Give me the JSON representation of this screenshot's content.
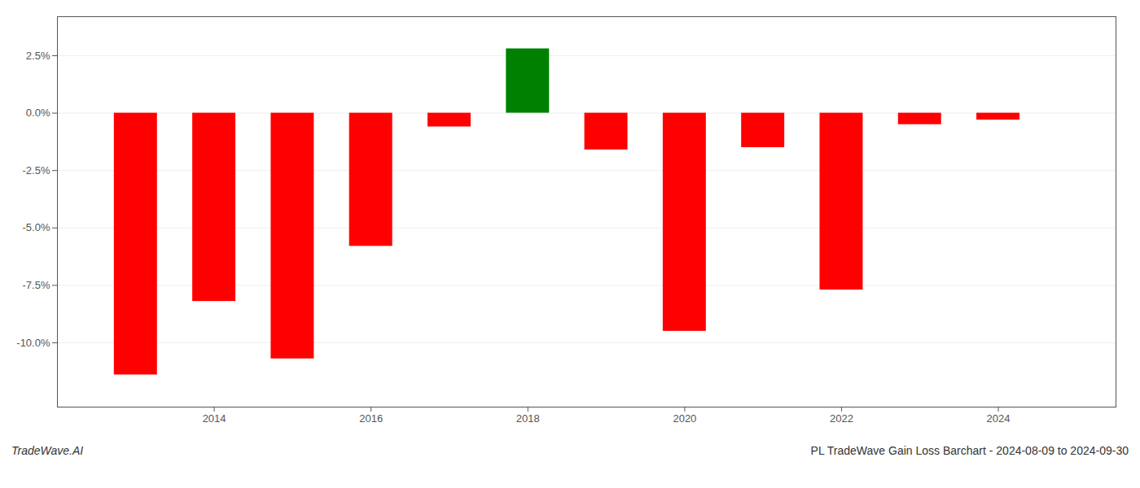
{
  "chart_data": {
    "type": "bar",
    "title": "PL TradeWave Gain Loss Barchart - 2024-08-09 to 2024-09-30",
    "annotations": [
      "TradeWave.AI"
    ],
    "x": [
      2013,
      2014,
      2015,
      2016,
      2017,
      2018,
      2019,
      2020,
      2021,
      2022,
      2023,
      2024
    ],
    "values": [
      -0.114,
      -0.082,
      -0.107,
      -0.058,
      -0.006,
      0.028,
      -0.016,
      -0.095,
      -0.015,
      -0.077,
      -0.005,
      -0.003
    ],
    "colors": [
      "red",
      "red",
      "red",
      "red",
      "red",
      "green",
      "red",
      "red",
      "red",
      "red",
      "red",
      "red"
    ],
    "xlim": [
      2012.0,
      2025.5
    ],
    "ylim": [
      -0.128,
      0.042
    ],
    "xticks": [
      2014,
      2016,
      2018,
      2020,
      2022,
      2024
    ],
    "yticks": [
      {
        "value": -0.1,
        "label": "-10.0%"
      },
      {
        "value": -0.075,
        "label": "-7.5%"
      },
      {
        "value": -0.05,
        "label": "-5.0%"
      },
      {
        "value": -0.025,
        "label": "-2.5%"
      },
      {
        "value": 0.0,
        "label": "0.0%"
      },
      {
        "value": 0.025,
        "label": "2.5%"
      }
    ],
    "grid": true
  }
}
